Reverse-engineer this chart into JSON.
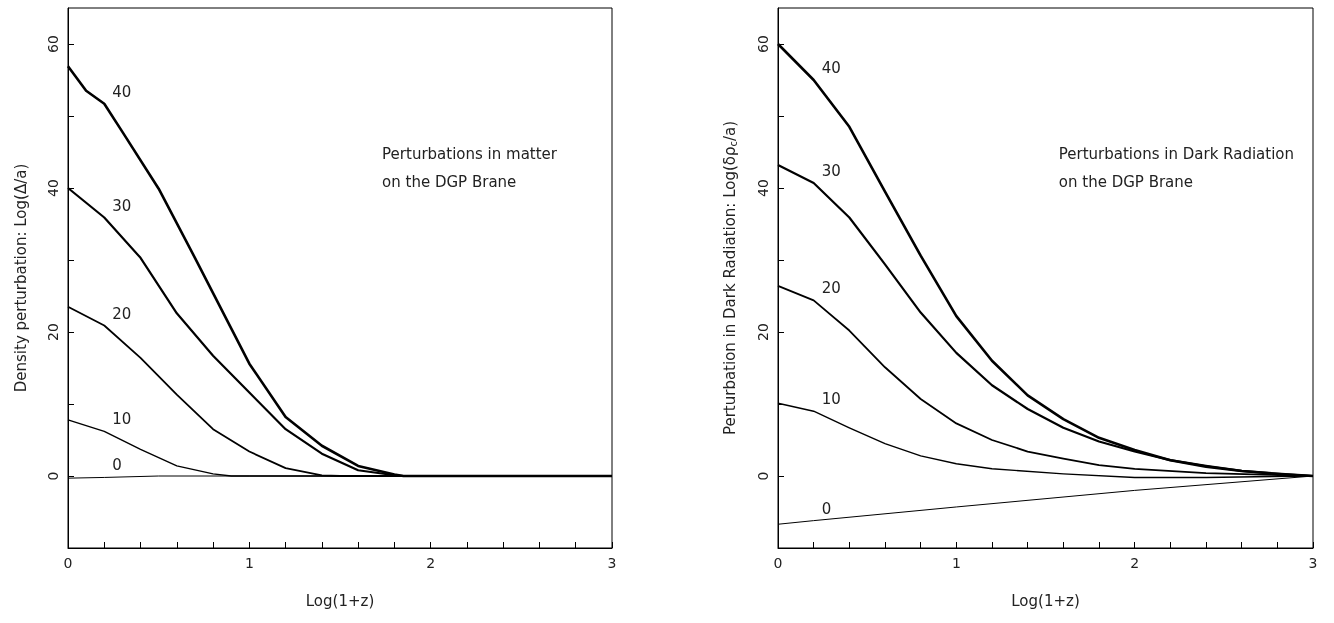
{
  "chart_data": [
    {
      "type": "line",
      "xlabel": "Log(1+z)",
      "ylabel": "Density perturbation: Log(Δ/a)",
      "annotations": [
        "Perturbations in matter\non the DGP Brane"
      ],
      "xlim": [
        0,
        3
      ],
      "ylim": [
        -10,
        65
      ],
      "xticks": [
        0,
        {
          "value": 0.2,
          "label": null
        },
        {
          "value": 0.4,
          "label": null
        },
        {
          "value": 0.6,
          "label": null
        },
        {
          "value": 0.8,
          "label": null
        },
        1,
        {
          "value": 1.2,
          "label": null
        },
        {
          "value": 1.4,
          "label": null
        },
        {
          "value": 1.6,
          "label": null
        },
        {
          "value": 1.8,
          "label": null
        },
        2,
        {
          "value": 2.2,
          "label": null
        },
        {
          "value": 2.4,
          "label": null
        },
        {
          "value": 2.6,
          "label": null
        },
        {
          "value": 2.8,
          "label": null
        },
        3
      ],
      "yticks": [
        {
          "value": -10,
          "label": null
        },
        0,
        {
          "value": 10,
          "label": null
        },
        20,
        {
          "value": 30,
          "label": null
        },
        40,
        {
          "value": 50,
          "label": null
        },
        60
      ],
      "grid": false,
      "legend": false,
      "marker": "none",
      "line_style": "solid",
      "series": [
        {
          "name": "0",
          "color": "#000000",
          "x": [
            0,
            0.2,
            0.5,
            1,
            2,
            3
          ],
          "values": [
            -0.3,
            -0.2,
            0,
            0,
            0,
            0
          ]
        },
        {
          "name": "10",
          "color": "#000000",
          "x": [
            0,
            0.2,
            0.4,
            0.6,
            0.8,
            0.9,
            1,
            2,
            3
          ],
          "values": [
            7.8,
            6.2,
            3.7,
            1.4,
            0.3,
            0,
            0,
            0,
            0
          ]
        },
        {
          "name": "20",
          "color": "#000000",
          "x": [
            0,
            0.2,
            0.4,
            0.6,
            0.8,
            1,
            1.2,
            1.4,
            1.5,
            2,
            3
          ],
          "values": [
            23.5,
            20.9,
            16.4,
            11.3,
            6.5,
            3.4,
            1.1,
            0.1,
            0,
            0,
            0
          ]
        },
        {
          "name": "30",
          "color": "#000000",
          "x": [
            0,
            0.2,
            0.4,
            0.6,
            0.8,
            1,
            1.2,
            1.4,
            1.6,
            1.8,
            1.85,
            2,
            3
          ],
          "values": [
            40,
            35.9,
            30.3,
            22.6,
            16.7,
            11.6,
            6.5,
            3.1,
            0.8,
            0.1,
            0,
            0,
            0
          ]
        },
        {
          "name": "40",
          "color": "#000000",
          "x": [
            0,
            0.1,
            0.2,
            0.3,
            0.5,
            0.7,
            1,
            1.2,
            1.4,
            1.6,
            1.8,
            1.85,
            2,
            3
          ],
          "values": [
            56.9,
            53.5,
            51.7,
            47.8,
            39.9,
            30.3,
            15.6,
            8.2,
            4.2,
            1.4,
            0.2,
            0,
            0,
            0
          ]
        }
      ]
    },
    {
      "type": "line",
      "xlabel": "Log(1+z)",
      "ylabel": "Perturbation in Dark Radiation: Log(δρ$_{c}$/a)",
      "annotations": [
        "Perturbations in Dark Radiation\non the DGP Brane"
      ],
      "xlim": [
        0,
        3
      ],
      "ylim": [
        -10,
        65
      ],
      "xticks": [
        0,
        {
          "value": 0.2,
          "label": null
        },
        {
          "value": 0.4,
          "label": null
        },
        {
          "value": 0.6,
          "label": null
        },
        {
          "value": 0.8,
          "label": null
        },
        1,
        {
          "value": 1.2,
          "label": null
        },
        {
          "value": 1.4,
          "label": null
        },
        {
          "value": 1.6,
          "label": null
        },
        {
          "value": 1.8,
          "label": null
        },
        2,
        {
          "value": 2.2,
          "label": null
        },
        {
          "value": 2.4,
          "label": null
        },
        {
          "value": 2.6,
          "label": null
        },
        {
          "value": 2.8,
          "label": null
        },
        3
      ],
      "yticks": [
        {
          "value": -10,
          "label": null
        },
        0,
        {
          "value": 10,
          "label": null
        },
        20,
        {
          "value": 30,
          "label": null
        },
        40,
        {
          "value": 50,
          "label": null
        },
        60
      ],
      "grid": false,
      "legend": false,
      "marker": "none",
      "line_style": "solid",
      "series": [
        {
          "name": "0",
          "color": "#000000",
          "x": [
            0,
            0.2,
            1,
            2,
            3
          ],
          "values": [
            -6.7,
            -6.2,
            -4.3,
            -2,
            0
          ]
        },
        {
          "name": "10",
          "color": "#000000",
          "x": [
            0,
            0.2,
            0.4,
            0.6,
            0.8,
            1,
            1.2,
            1.6,
            2,
            2.4,
            3
          ],
          "values": [
            10.1,
            9,
            6.7,
            4.5,
            2.8,
            1.7,
            1,
            0.3,
            -0.2,
            -0.2,
            0
          ]
        },
        {
          "name": "20",
          "color": "#000000",
          "x": [
            0,
            0.2,
            0.4,
            0.6,
            0.8,
            1,
            1.2,
            1.4,
            1.6,
            1.8,
            2,
            2.4,
            3
          ],
          "values": [
            26.4,
            24.4,
            20.2,
            15.1,
            10.7,
            7.3,
            5,
            3.4,
            2.4,
            1.5,
            1,
            0.4,
            0
          ]
        },
        {
          "name": "30",
          "color": "#000000",
          "x": [
            0,
            0.2,
            0.4,
            0.6,
            0.8,
            1,
            1.2,
            1.4,
            1.6,
            1.8,
            2,
            2.2,
            2.4,
            2.6,
            2.8,
            3
          ],
          "values": [
            43.2,
            40.7,
            35.9,
            29.4,
            22.7,
            17.1,
            12.6,
            9.3,
            6.7,
            4.8,
            3.4,
            2.2,
            1.4,
            0.7,
            0.3,
            0
          ]
        },
        {
          "name": "40",
          "color": "#000000",
          "x": [
            0,
            0.1,
            0.2,
            0.4,
            0.6,
            0.8,
            1,
            1.2,
            1.4,
            1.6,
            1.8,
            2,
            2.2,
            2.4,
            2.6,
            2.8,
            3
          ],
          "values": [
            60,
            57.5,
            55,
            48.5,
            39.5,
            30.6,
            22.2,
            16,
            11.2,
            7.9,
            5.3,
            3.6,
            2.2,
            1.3,
            0.7,
            0.3,
            0
          ]
        }
      ]
    }
  ]
}
